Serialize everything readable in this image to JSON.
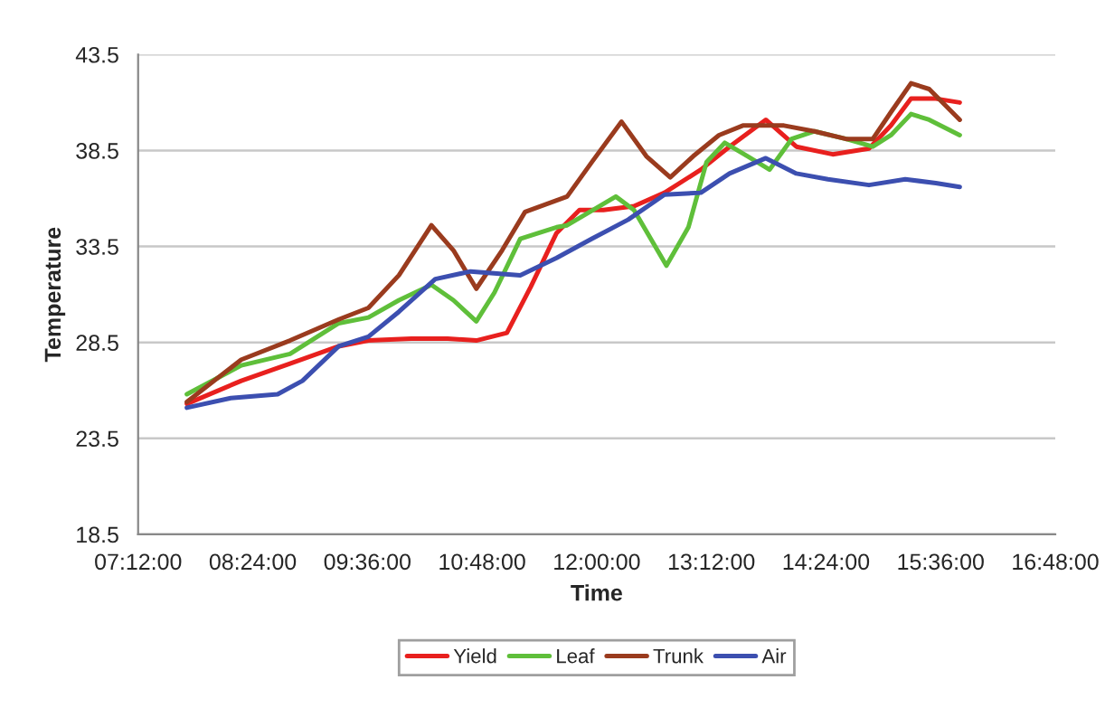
{
  "chart_data": {
    "type": "line",
    "xlabel": "Time",
    "ylabel": "Temperature",
    "xlim": [
      7.2,
      16.8
    ],
    "xticks": [
      {
        "value": 7.2,
        "label": "07:12:00"
      },
      {
        "value": 8.4,
        "label": "08:24:00"
      },
      {
        "value": 9.6,
        "label": "09:36:00"
      },
      {
        "value": 10.8,
        "label": "10:48:00"
      },
      {
        "value": 12,
        "label": "12:00:00"
      },
      {
        "value": 13.2,
        "label": "13:12:00"
      },
      {
        "value": 14.4,
        "label": "14:24:00"
      },
      {
        "value": 15.6,
        "label": "15:36:00"
      },
      {
        "value": 16.8,
        "label": "16:48:00"
      }
    ],
    "ylim": [
      18.5,
      43.5
    ],
    "yticks": [
      18.5,
      23.5,
      28.5,
      33.5,
      38.5,
      43.5
    ],
    "grid": "y",
    "legend": "bottom",
    "marker": "none",
    "line_style": "solid",
    "series": [
      {
        "name": "Yield",
        "color": "#e8201e",
        "x": [
          7.71,
          8.28,
          8.79,
          9.3,
          9.61,
          10.06,
          10.44,
          10.74,
          11.06,
          11.31,
          11.58,
          11.82,
          12.07,
          12.39,
          12.71,
          13.09,
          13.39,
          13.77,
          14.09,
          14.47,
          14.85,
          15.08,
          15.29,
          15.55,
          15.8
        ],
        "values": [
          25.3,
          26.5,
          27.4,
          28.3,
          28.6,
          28.7,
          28.7,
          28.6,
          29.0,
          31.4,
          34.2,
          35.4,
          35.4,
          35.6,
          36.3,
          37.5,
          38.7,
          40.1,
          38.7,
          38.3,
          38.6,
          39.8,
          41.2,
          41.2,
          41.0
        ]
      },
      {
        "name": "Leaf",
        "color": "#5fbf3a",
        "x": [
          7.71,
          8.28,
          8.79,
          9.3,
          9.61,
          9.93,
          10.27,
          10.5,
          10.74,
          10.93,
          11.2,
          11.58,
          11.69,
          12.2,
          12.39,
          12.73,
          12.96,
          13.15,
          13.34,
          13.58,
          13.81,
          14.04,
          14.28,
          14.61,
          14.89,
          15.08,
          15.29,
          15.48,
          15.8
        ],
        "values": [
          25.8,
          27.3,
          27.9,
          29.5,
          29.8,
          30.7,
          31.5,
          30.7,
          29.6,
          31.1,
          33.9,
          34.5,
          34.6,
          36.1,
          35.4,
          32.5,
          34.5,
          37.9,
          38.9,
          38.2,
          37.5,
          39.1,
          39.5,
          39.1,
          38.7,
          39.3,
          40.4,
          40.1,
          39.3
        ]
      },
      {
        "name": "Trunk",
        "color": "#9a3b1e",
        "x": [
          7.71,
          8.28,
          8.79,
          9.3,
          9.61,
          9.93,
          10.27,
          10.5,
          10.74,
          11.01,
          11.25,
          11.69,
          11.95,
          12.26,
          12.52,
          12.77,
          13.01,
          13.28,
          13.53,
          13.96,
          14.28,
          14.61,
          14.89,
          15.08,
          15.29,
          15.48,
          15.8
        ],
        "values": [
          25.4,
          27.6,
          28.6,
          29.7,
          30.3,
          32.0,
          34.6,
          33.3,
          31.3,
          33.3,
          35.3,
          36.1,
          37.9,
          40.0,
          38.2,
          37.1,
          38.2,
          39.3,
          39.8,
          39.8,
          39.5,
          39.1,
          39.1,
          40.5,
          42.0,
          41.7,
          40.1
        ]
      },
      {
        "name": "Air",
        "color": "#3c4fb0",
        "x": [
          7.71,
          8.17,
          8.66,
          8.92,
          9.3,
          9.61,
          9.93,
          10.31,
          10.68,
          11.2,
          11.58,
          11.95,
          12.33,
          12.71,
          13.09,
          13.39,
          13.77,
          14.09,
          14.42,
          14.85,
          15.23,
          15.55,
          15.8
        ],
        "values": [
          25.1,
          25.6,
          25.8,
          26.5,
          28.3,
          28.8,
          30.1,
          31.8,
          32.2,
          32.0,
          32.9,
          33.9,
          34.9,
          36.2,
          36.3,
          37.3,
          38.1,
          37.3,
          37.0,
          36.7,
          37.0,
          36.8,
          36.6
        ]
      }
    ]
  }
}
